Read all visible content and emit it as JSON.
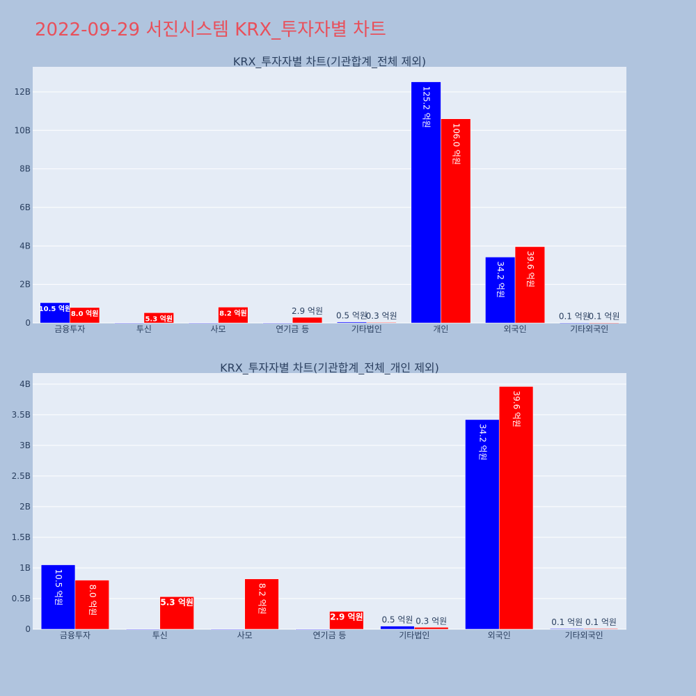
{
  "title": "2022-09-29 서진시스템 KRX_투자자별 차트",
  "colors": {
    "background": "#b0c4de",
    "plot_bg": "#e5ecf6",
    "blue": "#0000ff",
    "red": "#ff0000",
    "text": "#2a3f5f",
    "title": "#e8505b"
  },
  "chart_data": [
    {
      "type": "bar",
      "title": "KRX_투자자별 차트(기관합계_전체 제외)",
      "categories": [
        "금융투자",
        "투신",
        "사모",
        "연기금 등",
        "기타법인",
        "개인",
        "외국인",
        "기타외국인"
      ],
      "series": [
        {
          "color": "#0000ff",
          "values": [
            1050000000.0,
            0,
            0,
            0,
            50000000.0,
            12520000000.0,
            3420000000.0,
            10000000.0
          ],
          "labels": [
            "10.5 억원",
            "",
            "",
            "",
            "0.5 억원",
            "125.2 억원",
            "34.2 억원",
            "0.1 억원"
          ]
        },
        {
          "color": "#ff0000",
          "values": [
            800000000.0,
            530000000.0,
            820000000.0,
            290000000.0,
            30000000.0,
            10600000000.0,
            3960000000.0,
            10000000.0
          ],
          "labels": [
            "8.0 억원",
            "5.3 억원",
            "8.2 억원",
            "2.9 억원",
            "0.3 억원",
            "106.0 억원",
            "39.6 억원",
            "0.1 억원"
          ]
        }
      ],
      "ylim": [
        0,
        13300000000.0
      ],
      "yticks": [
        0,
        2000000000.0,
        4000000000.0,
        6000000000.0,
        8000000000.0,
        10000000000.0,
        12000000000.0
      ],
      "yticklabels": [
        "0",
        "2B",
        "4B",
        "6B",
        "8B",
        "10B",
        "12B"
      ],
      "grid": true
    },
    {
      "type": "bar",
      "title": "KRX_투자자별 차트(기관합계_전체_개인 제외)",
      "categories": [
        "금융투자",
        "투신",
        "사모",
        "연기금 등",
        "기타법인",
        "외국인",
        "기타외국인"
      ],
      "series": [
        {
          "color": "#0000ff",
          "values": [
            1050000000.0,
            0,
            0,
            0,
            50000000.0,
            3420000000.0,
            10000000.0
          ],
          "labels": [
            "10.5 억원",
            "",
            "",
            "",
            "0.5 억원",
            "34.2 억원",
            "0.1 억원"
          ]
        },
        {
          "color": "#ff0000",
          "values": [
            800000000.0,
            530000000.0,
            820000000.0,
            290000000.0,
            30000000.0,
            3960000000.0,
            10000000.0
          ],
          "labels": [
            "8.0 억원",
            "5.3 억원",
            "8.2 억원",
            "2.9 억원",
            "0.3 억원",
            "39.6 억원",
            "0.1 억원"
          ]
        }
      ],
      "ylim": [
        0,
        4180000000.0
      ],
      "yticks": [
        0,
        500000000.0,
        1000000000.0,
        1500000000.0,
        2000000000.0,
        2500000000.0,
        3000000000.0,
        3500000000.0,
        4000000000.0
      ],
      "yticklabels": [
        "0",
        "0.5B",
        "1B",
        "1.5B",
        "2B",
        "2.5B",
        "3B",
        "3.5B",
        "4B"
      ],
      "grid": true
    }
  ]
}
